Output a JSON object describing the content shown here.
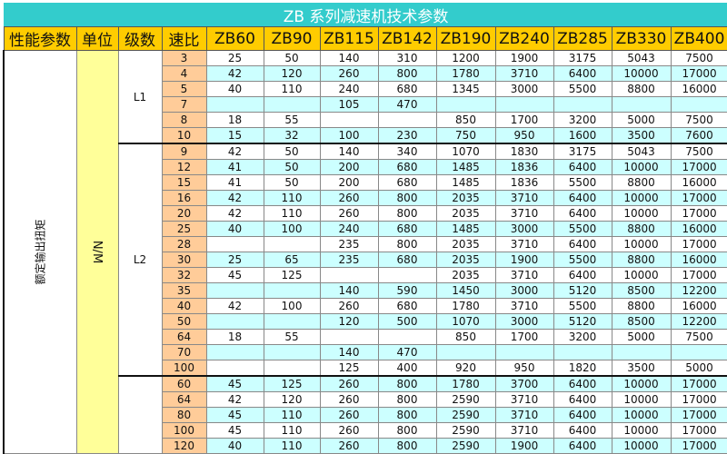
{
  "title": "ZB 系列减速机技术参数",
  "headers": [
    "性能参数",
    "单位",
    "级数",
    "速比",
    "ZB60",
    "ZB90",
    "ZB115",
    "ZB142",
    "ZB190",
    "ZB240",
    "ZB285",
    "ZB330",
    "ZB400"
  ],
  "param_label": "额定输出扭矩",
  "unit_label": "N/M",
  "colors": {
    "title_bg": "#33cccc",
    "header_bg": "#ffcc00",
    "ratio_bg": "#ffcc99",
    "unit_bg": "#ffff99",
    "alt_row_bg": "#ccffff"
  },
  "groups": [
    {
      "stage": "L1",
      "rows": [
        {
          "ratio": "3",
          "values": [
            "25",
            "50",
            "140",
            "310",
            "1200",
            "1900",
            "3175",
            "5043",
            "7500"
          ]
        },
        {
          "ratio": "4",
          "values": [
            "42",
            "120",
            "260",
            "800",
            "1780",
            "3710",
            "6400",
            "10000",
            "17000"
          ]
        },
        {
          "ratio": "5",
          "values": [
            "40",
            "110",
            "240",
            "680",
            "1345",
            "3000",
            "5500",
            "8800",
            "16000"
          ]
        },
        {
          "ratio": "7",
          "values": [
            "",
            "",
            "105",
            "470",
            "",
            "",
            "",
            "",
            ""
          ]
        },
        {
          "ratio": "8",
          "values": [
            "18",
            "55",
            "",
            "",
            "850",
            "1700",
            "3200",
            "5000",
            "7500"
          ]
        },
        {
          "ratio": "10",
          "values": [
            "15",
            "32",
            "100",
            "230",
            "750",
            "950",
            "1600",
            "3500",
            "7600"
          ]
        }
      ]
    },
    {
      "stage": "L2",
      "rows": [
        {
          "ratio": "9",
          "values": [
            "42",
            "50",
            "140",
            "340",
            "1070",
            "1830",
            "3175",
            "5043",
            "7500"
          ]
        },
        {
          "ratio": "12",
          "values": [
            "41",
            "50",
            "200",
            "680",
            "1485",
            "1836",
            "6400",
            "10000",
            "17000"
          ]
        },
        {
          "ratio": "15",
          "values": [
            "41",
            "50",
            "200",
            "680",
            "1485",
            "1836",
            "5500",
            "8800",
            "16000"
          ]
        },
        {
          "ratio": "16",
          "values": [
            "42",
            "110",
            "260",
            "800",
            "2035",
            "3710",
            "6400",
            "10000",
            "17000"
          ]
        },
        {
          "ratio": "20",
          "values": [
            "42",
            "110",
            "260",
            "800",
            "2035",
            "3710",
            "6400",
            "10000",
            "17000"
          ]
        },
        {
          "ratio": "25",
          "values": [
            "40",
            "100",
            "240",
            "680",
            "1485",
            "3000",
            "5500",
            "8800",
            "16000"
          ]
        },
        {
          "ratio": "28",
          "values": [
            "",
            "",
            "235",
            "800",
            "2035",
            "3710",
            "6400",
            "10000",
            "17000"
          ]
        },
        {
          "ratio": "30",
          "values": [
            "25",
            "65",
            "235",
            "680",
            "2035",
            "1900",
            "5500",
            "8800",
            "16000"
          ]
        },
        {
          "ratio": "32",
          "values": [
            "45",
            "125",
            "",
            "",
            "2035",
            "3710",
            "6400",
            "10000",
            "17000"
          ]
        },
        {
          "ratio": "35",
          "values": [
            "",
            "",
            "140",
            "590",
            "1450",
            "3000",
            "5120",
            "8500",
            "12200"
          ]
        },
        {
          "ratio": "40",
          "values": [
            "42",
            "100",
            "260",
            "680",
            "1780",
            "3710",
            "5500",
            "8800",
            "16000"
          ]
        },
        {
          "ratio": "50",
          "values": [
            "",
            "",
            "120",
            "500",
            "1070",
            "3000",
            "5120",
            "8500",
            "12200"
          ]
        },
        {
          "ratio": "64",
          "values": [
            "18",
            "55",
            "",
            "",
            "850",
            "1700",
            "3200",
            "5000",
            "7500"
          ]
        },
        {
          "ratio": "70",
          "values": [
            "",
            "",
            "140",
            "470",
            "",
            "",
            "",
            "",
            ""
          ]
        },
        {
          "ratio": "100",
          "values": [
            "",
            "",
            "125",
            "400",
            "920",
            "950",
            "1820",
            "3500",
            "5000"
          ]
        }
      ]
    },
    {
      "stage": "",
      "rows": [
        {
          "ratio": "60",
          "values": [
            "45",
            "125",
            "260",
            "800",
            "1780",
            "3700",
            "6400",
            "10000",
            "17000"
          ]
        },
        {
          "ratio": "64",
          "values": [
            "42",
            "120",
            "260",
            "800",
            "2590",
            "3710",
            "6400",
            "10000",
            "17000"
          ]
        },
        {
          "ratio": "80",
          "values": [
            "45",
            "110",
            "260",
            "800",
            "2590",
            "3710",
            "6400",
            "10000",
            "17000"
          ]
        },
        {
          "ratio": "100",
          "values": [
            "45",
            "110",
            "260",
            "800",
            "2590",
            "3710",
            "6400",
            "10000",
            "17000"
          ]
        },
        {
          "ratio": "120",
          "values": [
            "40",
            "110",
            "260",
            "800",
            "2590",
            "1900",
            "6400",
            "10000",
            "17000"
          ]
        }
      ]
    }
  ]
}
